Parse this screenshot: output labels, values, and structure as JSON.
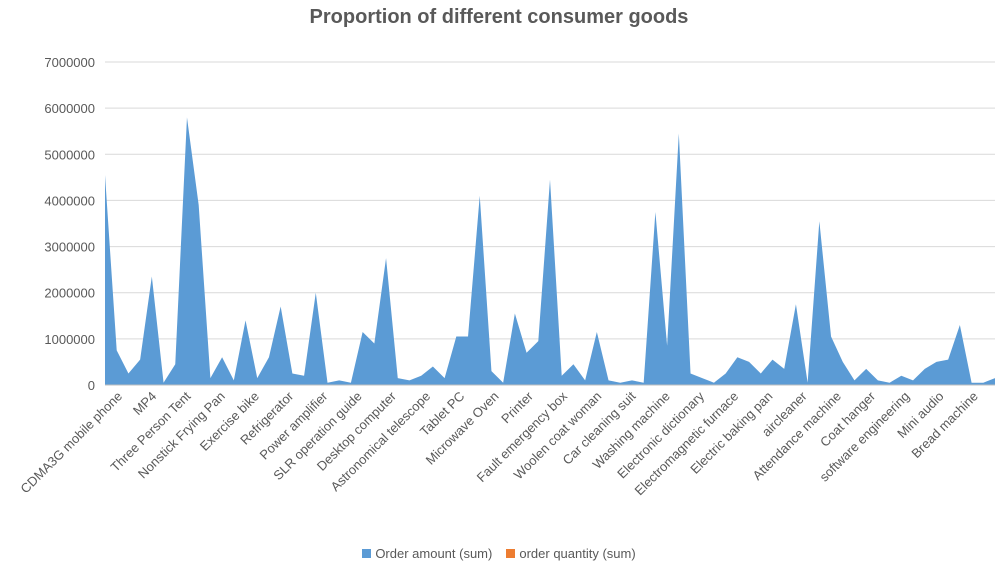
{
  "chart_data": {
    "type": "area",
    "title": "Proportion of different consumer goods",
    "xlabel": "",
    "ylabel": "",
    "ylim": [
      0,
      7000000
    ],
    "yticks": [
      "0",
      "1000000",
      "2000000",
      "3000000",
      "4000000",
      "5000000",
      "6000000",
      "7000000"
    ],
    "grid": true,
    "legend_position": "bottom",
    "labeled_categories": [
      "CDMA3G mobile phone",
      "MP4",
      "Three Person Tent",
      "Nonstick Frying Pan",
      "Exercise bike",
      "Refrigerator",
      "Power amplifier",
      "SLR operation guide",
      "Desktop computer",
      "Astronomical telescope",
      "Tablet PC",
      "Microwave Oven",
      "Printer",
      "Fault emergency box",
      "Woolen coat woman",
      "Car cleaning suit",
      "Washing machine",
      "Electronic dictionary",
      "Electromagnetic furnace",
      "Electric baking pan",
      "aircleaner",
      "Attendance machine",
      "Coat hanger",
      "software engineering",
      "Mini audio",
      "Bread machine"
    ],
    "series": [
      {
        "name": "Order amount (sum)",
        "color": "#5b9bd5",
        "values": [
          4550000,
          750000,
          250000,
          550000,
          2350000,
          50000,
          450000,
          5800000,
          3900000,
          150000,
          600000,
          100000,
          1400000,
          150000,
          600000,
          1700000,
          250000,
          200000,
          2000000,
          50000,
          100000,
          50000,
          1150000,
          900000,
          2750000,
          150000,
          100000,
          200000,
          400000,
          150000,
          1050000,
          1050000,
          4100000,
          300000,
          50000,
          1550000,
          700000,
          950000,
          4450000,
          200000,
          450000,
          100000,
          1150000,
          100000,
          50000,
          100000,
          50000,
          3750000,
          850000,
          5450000,
          250000,
          150000,
          50000,
          250000,
          600000,
          500000,
          250000,
          550000,
          350000,
          1750000,
          50000,
          3550000,
          1050000,
          500000,
          100000,
          350000,
          100000,
          50000,
          200000,
          100000,
          350000,
          500000,
          550000,
          1300000,
          50000,
          50000,
          150000
        ]
      },
      {
        "name": "order quantity (sum)",
        "color": "#ed7d31",
        "values": []
      }
    ]
  }
}
